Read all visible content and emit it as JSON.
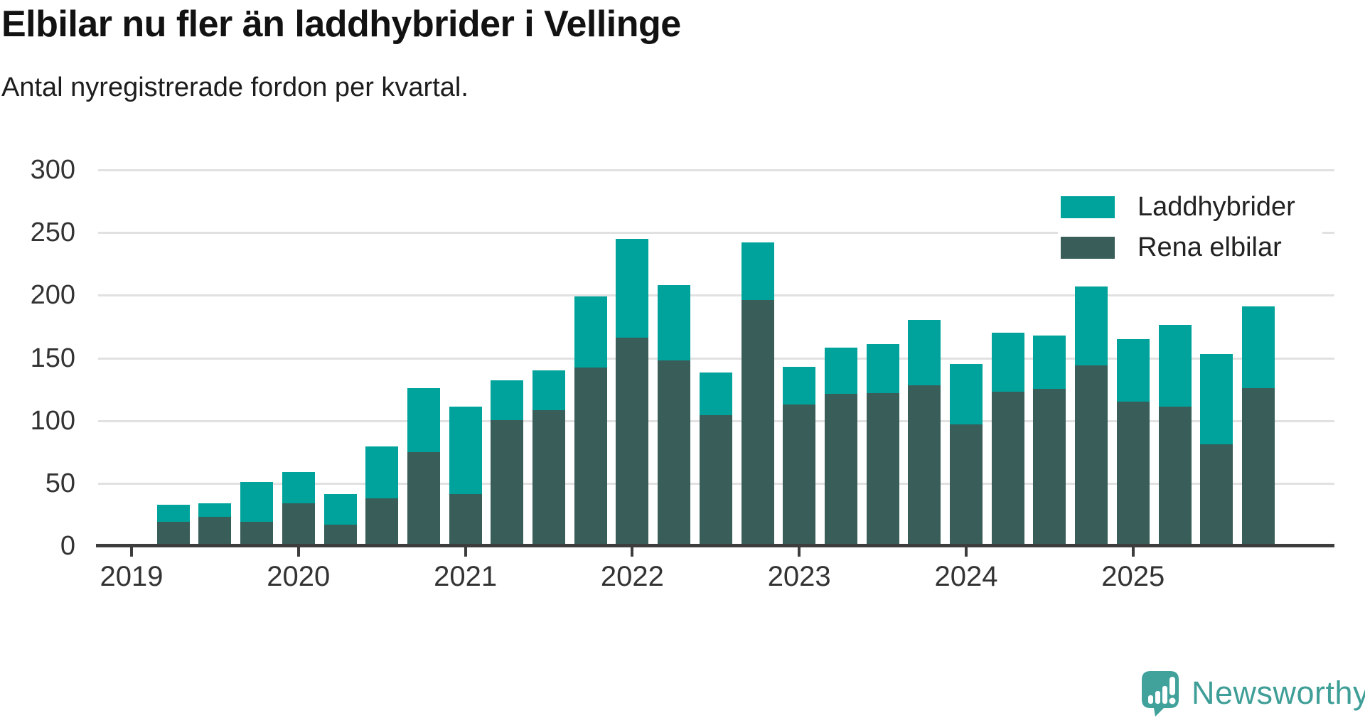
{
  "header": {
    "title": "Elbilar nu fler än laddhybrider i Vellinge",
    "subtitle": "Antal nyregistrerade fordon per kvartal."
  },
  "chart_data": {
    "type": "bar",
    "stacked": true,
    "title": "Elbilar nu fler än laddhybrider i Vellinge",
    "subtitle": "Antal nyregistrerade fordon per kvartal.",
    "xlabel": "",
    "ylabel": "",
    "ylim": [
      0,
      300
    ],
    "yticks": [
      0,
      50,
      100,
      150,
      200,
      250,
      300
    ],
    "grid": true,
    "legend_position": "top-right",
    "categories": [
      "2019 Q2",
      "2019 Q3",
      "2019 Q4",
      "2020 Q1",
      "2020 Q2",
      "2020 Q3",
      "2020 Q4",
      "2021 Q1",
      "2021 Q2",
      "2021 Q3",
      "2021 Q4",
      "2022 Q1",
      "2022 Q2",
      "2022 Q3",
      "2022 Q4",
      "2023 Q1",
      "2023 Q2",
      "2023 Q3",
      "2023 Q4",
      "2024 Q1",
      "2024 Q2",
      "2024 Q3",
      "2024 Q4",
      "2025 Q1",
      "2025 Q2",
      "2025 Q3",
      "2025 Q4"
    ],
    "x_year_ticks": [
      "2019",
      "2020",
      "2021",
      "2022",
      "2023",
      "2024",
      "2025"
    ],
    "series": [
      {
        "name": "Laddhybrider",
        "color": "#00a39b",
        "stack_position": "top",
        "values": [
          14,
          11,
          32,
          25,
          24,
          41,
          51,
          70,
          32,
          32,
          57,
          79,
          60,
          34,
          46,
          30,
          37,
          39,
          52,
          48,
          47,
          43,
          63,
          50,
          65,
          72,
          65
        ]
      },
      {
        "name": "Rena elbilar",
        "color": "#395d58",
        "stack_position": "bottom",
        "values": [
          18,
          22,
          18,
          33,
          16,
          37,
          74,
          40,
          99,
          107,
          141,
          165,
          147,
          103,
          195,
          112,
          120,
          121,
          127,
          96,
          122,
          124,
          143,
          114,
          110,
          80,
          125
        ]
      }
    ],
    "stack_totals": [
      32,
      33,
      50,
      58,
      40,
      78,
      125,
      110,
      131,
      139,
      198,
      244,
      207,
      137,
      241,
      142,
      157,
      160,
      179,
      144,
      169,
      167,
      206,
      164,
      175,
      152,
      190
    ]
  },
  "style_colors": {
    "grid_color": "#e1e1e1",
    "axis_color": "#3d3d3d",
    "tick_label_color": "#333333"
  },
  "branding": {
    "text": "Newsworthy",
    "text_color": "#3f9e97",
    "mark_color": "#41a19b"
  }
}
